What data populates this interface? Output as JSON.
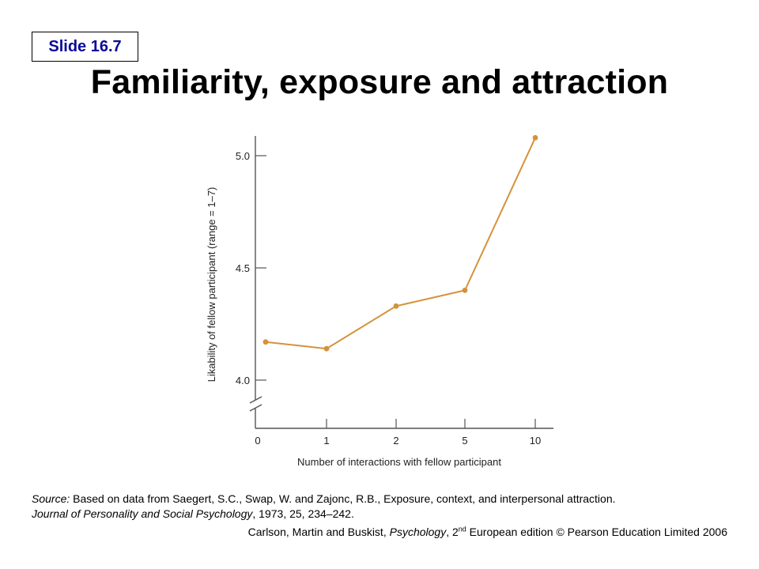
{
  "slide_label": "Slide 16.7",
  "title": "Familiarity, exposure and attraction",
  "chart_data": {
    "type": "line",
    "categories": [
      "0",
      "1",
      "2",
      "5",
      "10"
    ],
    "values": [
      4.17,
      4.14,
      4.33,
      4.4,
      5.08
    ],
    "xlabel": "Number of interactions with fellow participant",
    "ylabel": "Likability of fellow participant (range = 1–7)",
    "yticks": [
      "4.0",
      "4.5",
      "5.0"
    ],
    "ylim": [
      4.0,
      5.1
    ],
    "axis_break": true,
    "grid": false,
    "color": "#d4923b"
  },
  "source": {
    "prefix": "Source:",
    "text1": " Based on data from Saegert, S.C., Swap, W. and Zajonc, R.B., Exposure, context, and interpersonal attraction.",
    "journal": "Journal of Personality and Social Psychology",
    "text2": ", 1973, 25, 234–242."
  },
  "credit": {
    "authors": "Carlson, Martin and Buskist, ",
    "book": "Psychology",
    "edition_pre": ", 2",
    "edition_sup": "nd",
    "edition_post": " European edition © Pearson Education Limited 2006"
  }
}
